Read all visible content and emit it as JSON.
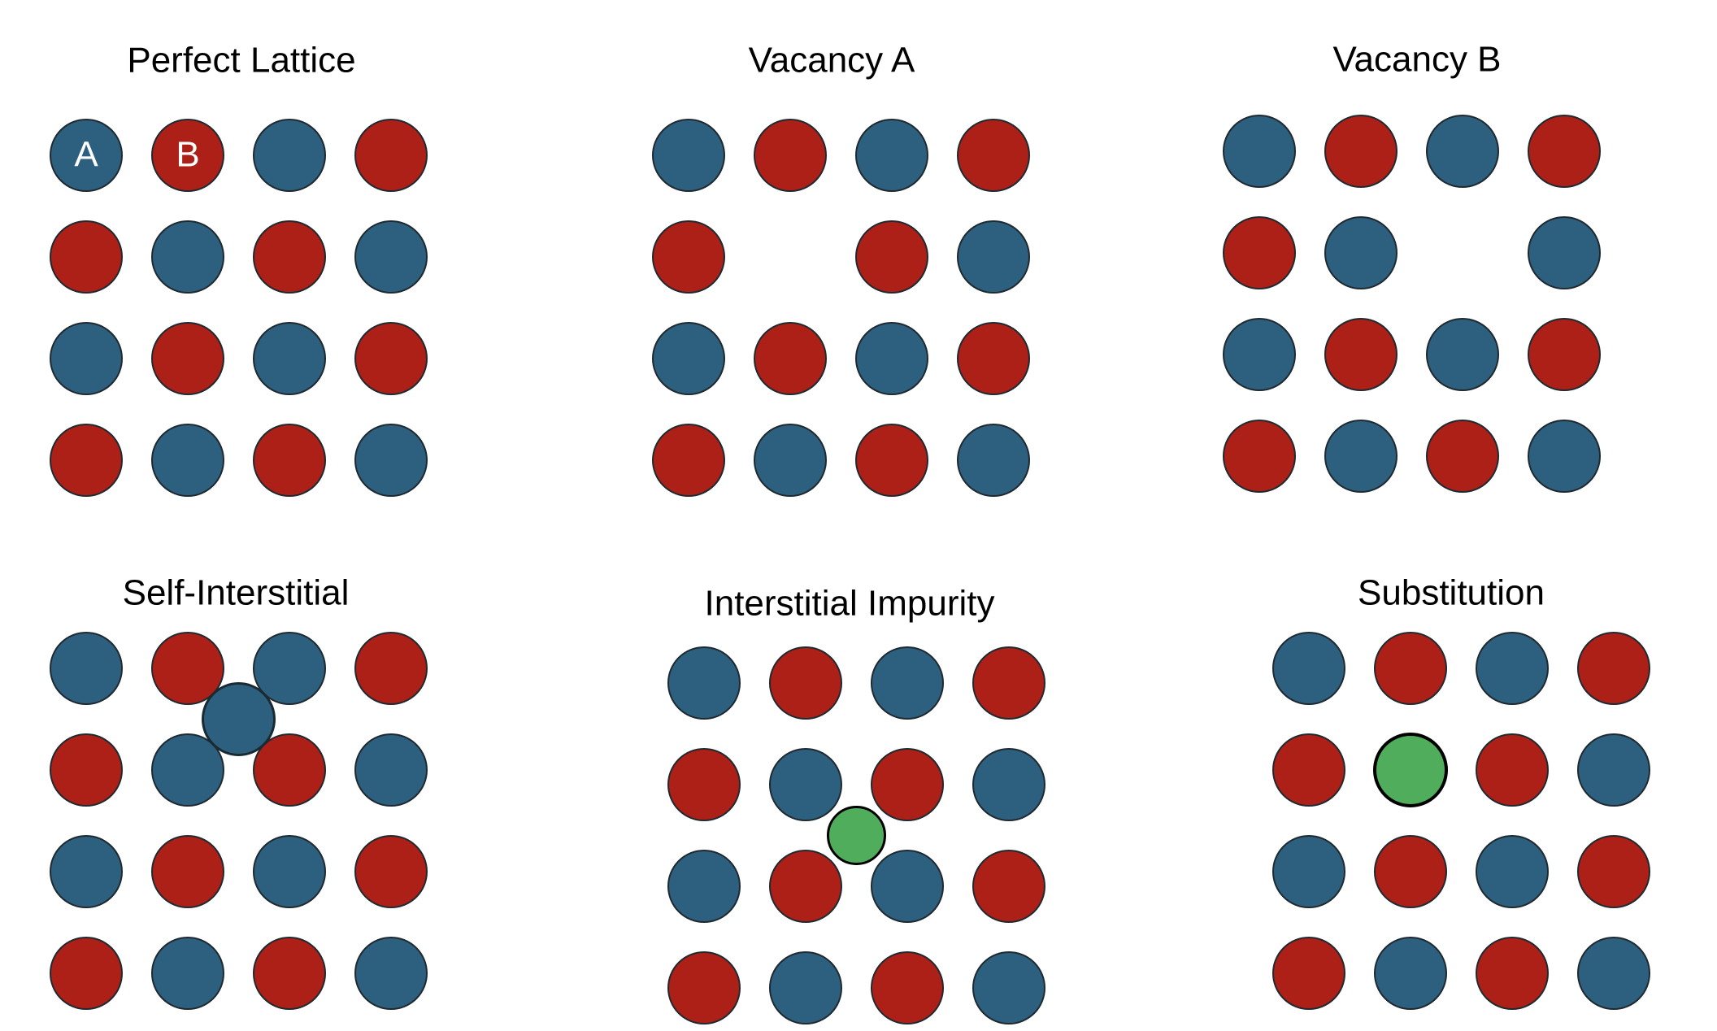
{
  "colors": {
    "A": "#2d5f7f",
    "B": "#ad2018",
    "impurity": "#4fad5b",
    "outline": "#1f2a30"
  },
  "legend": {
    "A": "A",
    "B": "B"
  },
  "panels": [
    {
      "id": "perfect-lattice",
      "title": "Perfect Lattice",
      "grid": [
        [
          "A",
          "B",
          "A",
          "B"
        ],
        [
          "B",
          "A",
          "B",
          "A"
        ],
        [
          "A",
          "B",
          "A",
          "B"
        ],
        [
          "B",
          "A",
          "B",
          "A"
        ]
      ],
      "labeled_atoms": [
        {
          "row": 0,
          "col": 0,
          "label": "A"
        },
        {
          "row": 0,
          "col": 1,
          "label": "B"
        }
      ],
      "extras": []
    },
    {
      "id": "vacancy-a",
      "title": "Vacancy A",
      "grid": [
        [
          "A",
          "B",
          "A",
          "B"
        ],
        [
          "B",
          null,
          "B",
          "A"
        ],
        [
          "A",
          "B",
          "A",
          "B"
        ],
        [
          "B",
          "A",
          "B",
          "A"
        ]
      ],
      "labeled_atoms": [],
      "extras": []
    },
    {
      "id": "vacancy-b",
      "title": "Vacancy B",
      "grid": [
        [
          "A",
          "B",
          "A",
          "B"
        ],
        [
          "B",
          "A",
          null,
          "A"
        ],
        [
          "A",
          "B",
          "A",
          "B"
        ],
        [
          "B",
          "A",
          "B",
          "A"
        ]
      ],
      "labeled_atoms": [],
      "extras": []
    },
    {
      "id": "self-interstitial",
      "title": "Self-Interstitial",
      "grid": [
        [
          "A",
          "B",
          "A",
          "B"
        ],
        [
          "B",
          "A",
          "B",
          "A"
        ],
        [
          "A",
          "B",
          "A",
          "B"
        ],
        [
          "B",
          "A",
          "B",
          "A"
        ]
      ],
      "labeled_atoms": [],
      "extras": [
        {
          "type": "A",
          "between_rows": [
            0,
            1
          ],
          "between_cols": [
            1,
            2
          ],
          "scale": 1.0
        }
      ]
    },
    {
      "id": "interstitial-impurity",
      "title": "Interstitial Impurity",
      "grid": [
        [
          "A",
          "B",
          "A",
          "B"
        ],
        [
          "B",
          "A",
          "B",
          "A"
        ],
        [
          "A",
          "B",
          "A",
          "B"
        ],
        [
          "B",
          "A",
          "B",
          "A"
        ]
      ],
      "labeled_atoms": [],
      "extras": [
        {
          "type": "impurity",
          "between_rows": [
            1,
            2
          ],
          "between_cols": [
            1,
            2
          ],
          "scale": 0.8
        }
      ]
    },
    {
      "id": "substitution",
      "title": "Substitution",
      "grid": [
        [
          "A",
          "B",
          "A",
          "B"
        ],
        [
          "B",
          "impurity",
          "B",
          "A"
        ],
        [
          "A",
          "B",
          "A",
          "B"
        ],
        [
          "B",
          "A",
          "B",
          "A"
        ]
      ],
      "labeled_atoms": [],
      "extras": []
    }
  ]
}
